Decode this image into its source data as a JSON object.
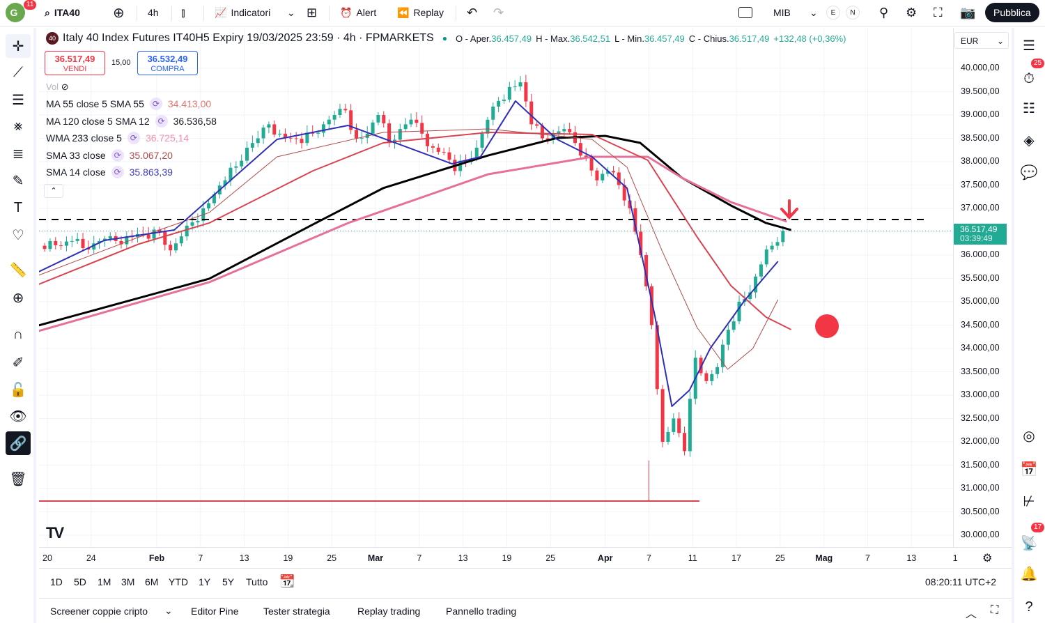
{
  "topbar": {
    "avatar_letter": "G",
    "avatar_badge": "11",
    "symbol": "ITA40",
    "interval": "4h",
    "indicators": "Indicatori",
    "alert": "Alert",
    "replay": "Replay",
    "index_label": "MIB",
    "e_label": "E",
    "n_label": "N",
    "publish": "Pubblica"
  },
  "legend": {
    "symbol_badge": "40",
    "title": "Italy 40 Index Futures IT40H5 Expiry 19/03/2025 23:59 · 4h · FPMARKETS",
    "ohlc": {
      "o_label": "O - Aper.",
      "o": "36.457,49",
      "h_label": "H - Max.",
      "h": "36.542,51",
      "l_label": "L - Min.",
      "l": "36.457,49",
      "c_label": "C - Chius.",
      "c": "36.517,49",
      "change": "+132,48 (+0,36%)"
    },
    "sell_price": "36.517,49",
    "sell_label": "VENDI",
    "spread": "15,00",
    "buy_price": "36.532,49",
    "buy_label": "COMPRA",
    "vol": "Vol",
    "indicators": [
      {
        "name": "MA 55 close 5 SMA 55",
        "value": "34.413,00",
        "color": "#e57373"
      },
      {
        "name": "MA 120 close 5 SMA 12",
        "value": "36.536,58",
        "color": "#131722"
      },
      {
        "name": "WMA 233 close 5",
        "value": "36.725,14",
        "color": "#f48fb1"
      },
      {
        "name": "SMA 33 close",
        "value": "35.067,20",
        "color": "#b24a4a"
      },
      {
        "name": "SMA 14 close",
        "value": "35.863,39",
        "color": "#3f3fb0"
      }
    ]
  },
  "currency": "EUR",
  "price_axis": {
    "labels": [
      "40.000,00",
      "39.500,00",
      "39.000,00",
      "38.500,00",
      "38.000,00",
      "37.500,00",
      "37.000,00",
      "36.000,00",
      "35.500,00",
      "35.000,00",
      "34.500,00",
      "34.000,00",
      "33.500,00",
      "33.000,00",
      "32.500,00",
      "32.000,00",
      "31.500,00",
      "31.000,00",
      "30.500,00",
      "30.000,00"
    ],
    "current_price": "36.517,49",
    "countdown": "03:39:49"
  },
  "time_axis": [
    "20",
    "24",
    "Feb",
    "7",
    "13",
    "19",
    "25",
    "Mar",
    "7",
    "13",
    "19",
    "25",
    "Apr",
    "7",
    "11",
    "17",
    "25",
    "Mag",
    "7",
    "13",
    "1"
  ],
  "range_buttons": [
    "1D",
    "5D",
    "1M",
    "3M",
    "6M",
    "YTD",
    "1Y",
    "5Y",
    "Tutto"
  ],
  "clock": "08:20:11 UTC+2",
  "bottom_tabs": [
    "Screener coppie cripto",
    "Editor Pine",
    "Tester strategia",
    "Replay trading",
    "Pannello trading"
  ],
  "right_badges": {
    "alerts": "25",
    "notifications": "17"
  },
  "chart_data": {
    "type": "candlestick",
    "ylim": [
      29850,
      40400
    ],
    "xlim": [
      -0.8,
      83
    ],
    "x_ticks": [
      0,
      4,
      10,
      14,
      18,
      22,
      26,
      30,
      34,
      38,
      42,
      46,
      51,
      55,
      59,
      63,
      67,
      71,
      75,
      79,
      83
    ],
    "closes": [
      36300,
      36200,
      36300,
      36150,
      36250,
      36350,
      36300,
      36400,
      36450,
      36350,
      36500,
      36100,
      36400,
      36700,
      37000,
      37300,
      37600,
      37900,
      38300,
      38500,
      38800,
      38600,
      38500,
      38400,
      38600,
      38800,
      39000,
      39100,
      38500,
      38600,
      39000,
      38400,
      38700,
      38900,
      38600,
      38300,
      38200,
      37800,
      38000,
      38300,
      38900,
      39300,
      39600,
      39700,
      38800,
      38500,
      38600,
      38700,
      38400,
      38100,
      37600,
      37800,
      37500,
      37000,
      36000,
      34500,
      32000,
      32500,
      31800,
      33800,
      33300,
      33600,
      34400,
      35000,
      35200,
      35800,
      36200,
      36517
    ],
    "lines": [
      {
        "name": "WMA 233",
        "color": "#000000",
        "width": 3,
        "points": [
          [
            -0.8,
            34493
          ],
          [
            14.8,
            35493
          ],
          [
            24.3,
            36657
          ],
          [
            30.7,
            37433
          ],
          [
            40.3,
            38134
          ],
          [
            46.6,
            38507
          ],
          [
            51,
            38552
          ],
          [
            54.2,
            38403
          ],
          [
            58,
            37657
          ],
          [
            62.5,
            37060
          ],
          [
            65.7,
            36687
          ],
          [
            68,
            36537
          ]
        ]
      },
      {
        "name": "SMA 120",
        "color": "#e5709a",
        "width": 3,
        "points": [
          [
            -0.8,
            34373
          ],
          [
            14.8,
            35418
          ],
          [
            27.5,
            36687
          ],
          [
            40.3,
            37731
          ],
          [
            49.8,
            38104
          ],
          [
            54.9,
            38104
          ],
          [
            58,
            37657
          ],
          [
            62.5,
            37134
          ],
          [
            67.6,
            36717
          ]
        ]
      },
      {
        "name": "SMA 55",
        "color": "#d9434f",
        "width": 2,
        "points": [
          [
            -0.8,
            35373
          ],
          [
            8.4,
            36239
          ],
          [
            14.8,
            36687
          ],
          [
            24.3,
            37806
          ],
          [
            30.7,
            38403
          ],
          [
            40.3,
            38627
          ],
          [
            49.8,
            38582
          ],
          [
            54.9,
            38030
          ],
          [
            59.4,
            36388
          ],
          [
            62.5,
            35343
          ],
          [
            65.7,
            34672
          ],
          [
            68,
            34403
          ]
        ]
      },
      {
        "name": "SMA 33",
        "color": "#b24a4a",
        "width": 1,
        "points": [
          [
            -0.8,
            35567
          ],
          [
            8.4,
            36388
          ],
          [
            14.8,
            36910
          ],
          [
            21,
            38104
          ],
          [
            30.7,
            38627
          ],
          [
            40.3,
            38701
          ],
          [
            49.8,
            38478
          ],
          [
            53,
            37880
          ],
          [
            56.2,
            36090
          ],
          [
            59.4,
            34448
          ],
          [
            62.2,
            33552
          ],
          [
            64.5,
            34000
          ],
          [
            66.8,
            35045
          ]
        ]
      },
      {
        "name": "SMA 14",
        "color": "#2f2fb5",
        "width": 2,
        "points": [
          [
            -0.8,
            35642
          ],
          [
            5.2,
            36313
          ],
          [
            11.6,
            36537
          ],
          [
            21,
            38478
          ],
          [
            27.5,
            38776
          ],
          [
            37,
            37955
          ],
          [
            39.6,
            38104
          ],
          [
            42.8,
            39299
          ],
          [
            46.6,
            38478
          ],
          [
            49.8,
            38104
          ],
          [
            53,
            37433
          ],
          [
            55.5,
            34746
          ],
          [
            57.1,
            32761
          ],
          [
            58.7,
            33104
          ],
          [
            60.6,
            34000
          ],
          [
            63.8,
            35045
          ],
          [
            66.8,
            35866
          ]
        ]
      }
    ],
    "dashed_level": 36761,
    "support_level": 30731,
    "current": 36517.49
  }
}
